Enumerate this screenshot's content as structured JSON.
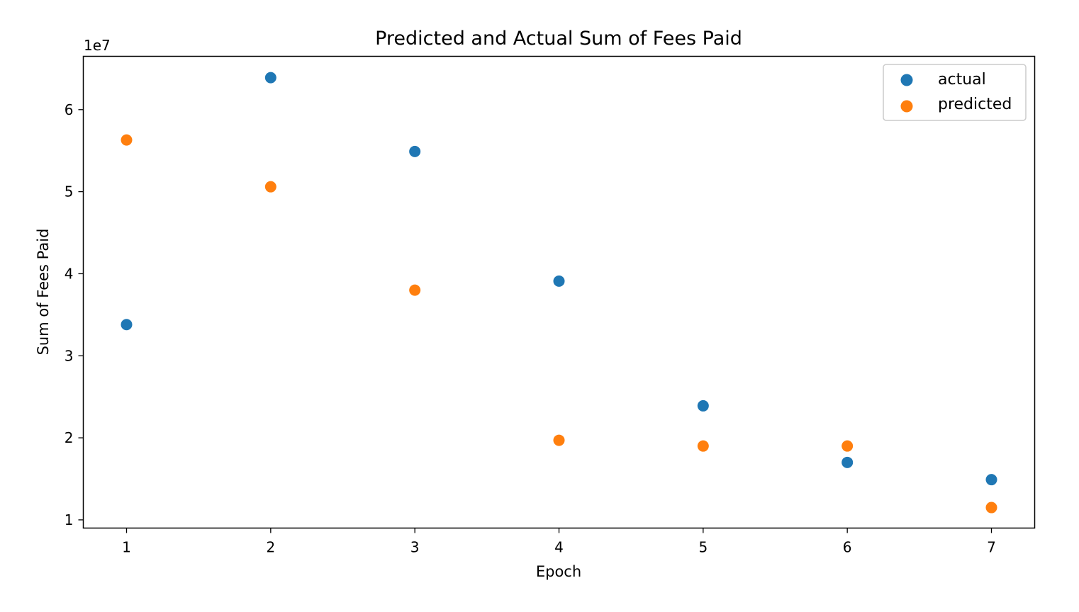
{
  "chart_data": {
    "type": "scatter",
    "title": "Predicted and Actual Sum of Fees Paid",
    "xlabel": "Epoch",
    "ylabel": "Sum of Fees Paid",
    "y_offset_label": "1e7",
    "x": [
      1,
      2,
      3,
      4,
      5,
      6,
      7
    ],
    "xlim": [
      0.7,
      7.3
    ],
    "ylim": [
      0.9,
      6.65
    ],
    "x_ticks": [
      1,
      2,
      3,
      4,
      5,
      6,
      7
    ],
    "x_tick_labels": [
      "1",
      "2",
      "3",
      "4",
      "5",
      "6",
      "7"
    ],
    "y_ticks": [
      1,
      2,
      3,
      4,
      5,
      6
    ],
    "y_tick_labels": [
      "1",
      "2",
      "3",
      "4",
      "5",
      "6"
    ],
    "grid": false,
    "legend_position": "top-right",
    "series": [
      {
        "name": "actual",
        "color": "#1f77b4",
        "values": [
          3.38,
          6.39,
          5.49,
          3.91,
          2.39,
          1.7,
          1.49
        ]
      },
      {
        "name": "predicted",
        "color": "#ff7f0e",
        "values": [
          5.63,
          5.06,
          3.8,
          1.97,
          1.9,
          1.9,
          1.15
        ]
      }
    ]
  }
}
